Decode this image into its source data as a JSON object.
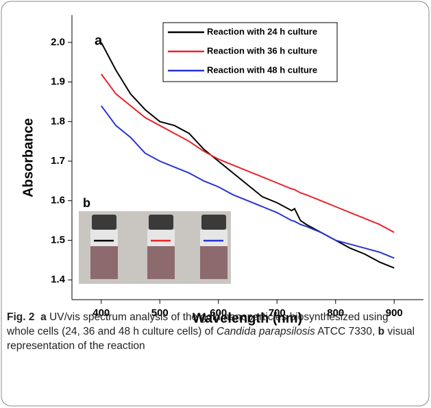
{
  "chart_data": {
    "type": "line",
    "x_label": "Wavelength (nm)",
    "y_label": "Absorbance",
    "annotations": [
      "a",
      "b"
    ],
    "x": [
      400,
      425,
      450,
      475,
      500,
      525,
      550,
      575,
      600,
      625,
      650,
      675,
      700,
      725,
      730,
      740,
      750,
      775,
      800,
      825,
      850,
      875,
      900
    ],
    "series": [
      {
        "name": "Reaction with 24 h culture",
        "color": "#000000",
        "values": [
          2.0,
          1.93,
          1.87,
          1.83,
          1.8,
          1.79,
          1.77,
          1.73,
          1.7,
          1.67,
          1.64,
          1.61,
          1.595,
          1.575,
          1.58,
          1.55,
          1.54,
          1.52,
          1.5,
          1.48,
          1.465,
          1.445,
          1.43
        ]
      },
      {
        "name": "Reaction with 36 h culture",
        "color": "#e8232a",
        "values": [
          1.92,
          1.87,
          1.84,
          1.81,
          1.79,
          1.77,
          1.75,
          1.725,
          1.705,
          1.69,
          1.675,
          1.66,
          1.645,
          1.63,
          1.628,
          1.62,
          1.615,
          1.6,
          1.585,
          1.57,
          1.555,
          1.54,
          1.52
        ]
      },
      {
        "name": "Reaction with 48 h culture",
        "color": "#2632d6",
        "values": [
          1.84,
          1.79,
          1.76,
          1.72,
          1.7,
          1.685,
          1.67,
          1.65,
          1.635,
          1.615,
          1.6,
          1.585,
          1.57,
          1.55,
          1.548,
          1.54,
          1.535,
          1.52,
          1.5,
          1.49,
          1.48,
          1.47,
          1.455
        ]
      }
    ],
    "xlim": [
      350,
      950
    ],
    "xticks": [
      400,
      500,
      600,
      700,
      800,
      900
    ],
    "ylim": [
      1.35,
      2.05
    ],
    "yticks": [
      1.4,
      1.5,
      1.6,
      1.7,
      1.8,
      1.9,
      {
        "value": 2,
        "label": "2.0"
      }
    ],
    "legend": "upper-center",
    "grid": false
  },
  "caption": {
    "label": "Fig. 2",
    "a": "a",
    "text1": "UV/vis spectrum analysis of the gold nanoparticles biosynthesized using whole cells (24, 36 and 48 h culture cells) of",
    "species": "Candida parapsilosis",
    "text2": "ATCC 7330,",
    "b": "b",
    "text3": "visual representation of the reaction"
  }
}
